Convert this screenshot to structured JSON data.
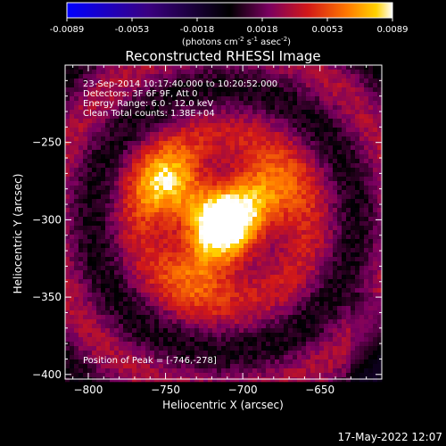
{
  "chart_data": {
    "type": "heatmap",
    "title": "Reconstructed RHESSI Image",
    "xlabel": "Heliocentric X (arcsec)",
    "ylabel": "Heliocentric Y (arcsec)",
    "xlim": [
      -815,
      -610
    ],
    "ylim": [
      -403,
      -200
    ],
    "x_ticks": [
      -800,
      -750,
      -700,
      -650
    ],
    "y_ticks": [
      -250,
      -300,
      -350,
      -400
    ],
    "colorbar": {
      "range": [
        -0.0089,
        0.0089
      ],
      "ticks": [
        "-0.0089",
        "-0.0053",
        "-0.0018",
        "0.0018",
        "0.0053",
        "0.0089"
      ],
      "unit_prefix": "(photons cm",
      "unit_sup1": "-2",
      "unit_mid": " s",
      "unit_sup2": "-1",
      "unit_mid2": " asec",
      "unit_sup3": "-2",
      "unit_suffix": ")",
      "colormap": [
        "#0000ff",
        "#3a0080",
        "#000000",
        "#7a0060",
        "#d21818",
        "#ff7800",
        "#ffd200",
        "#ffffff"
      ]
    },
    "annotations": [
      "23-Sep-2014 10:17:40.000 to 10:20:52.000",
      "Detectors: 3F 6F 9F, Att 0",
      "Energy Range: 6.0 - 12.0 keV",
      "Clean     Total counts: 1.38E+04"
    ],
    "peak_label": "Position of Peak = [-746,-278]",
    "peak": [
      -746,
      -278
    ],
    "sources": [
      {
        "x": -712,
        "y": -305,
        "amplitude": 1.0
      },
      {
        "x": -746,
        "y": -278,
        "amplitude": 0.95
      },
      {
        "x": -688,
        "y": -283,
        "amplitude": 0.85
      },
      {
        "x": -728,
        "y": -330,
        "amplitude": 0.6
      }
    ]
  },
  "footer": {
    "timestamp": "17-May-2022 12:07"
  }
}
